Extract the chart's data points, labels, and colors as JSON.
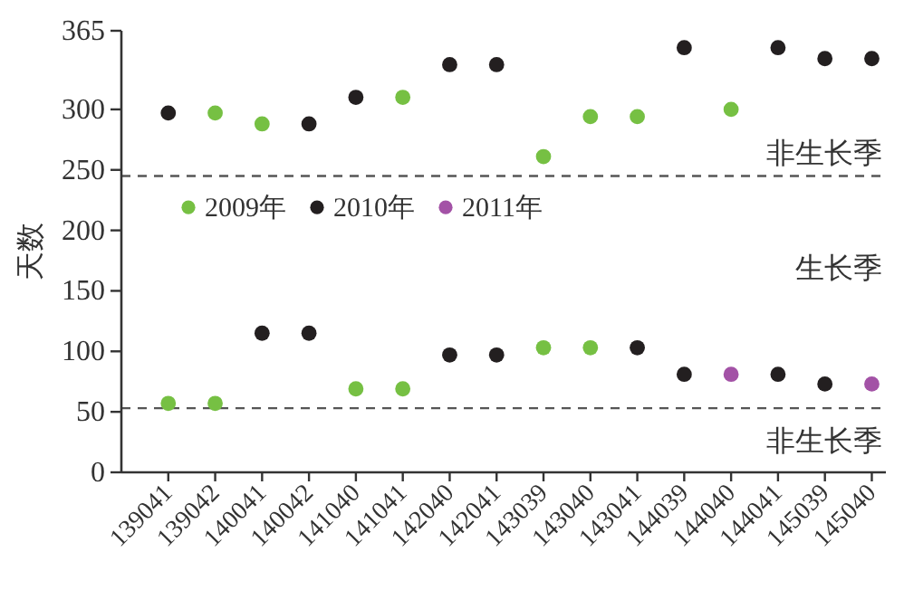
{
  "chart_data": {
    "type": "scatter",
    "ylabel": "天数",
    "categories": [
      "139041",
      "139042",
      "140041",
      "140042",
      "141040",
      "141041",
      "142040",
      "142041",
      "143039",
      "143040",
      "143041",
      "144039",
      "144040",
      "144041",
      "145039",
      "145040"
    ],
    "series": [
      {
        "name": "2009年",
        "color": "#76c043",
        "x": [
          "139042",
          "140041",
          "141041",
          "143039",
          "143040",
          "143041",
          "144040",
          "139041",
          "139042",
          "141040",
          "141041",
          "143039",
          "143040"
        ],
        "values": [
          297,
          288,
          310,
          261,
          294,
          294,
          300,
          57,
          57,
          69,
          69,
          103,
          103
        ]
      },
      {
        "name": "2010年",
        "color": "#231f20",
        "x": [
          "139041",
          "140042",
          "141040",
          "142040",
          "142041",
          "144039",
          "144041",
          "145039",
          "145040",
          "140041",
          "140042",
          "142040",
          "142041",
          "143041",
          "144039",
          "144041",
          "145039"
        ],
        "values": [
          297,
          288,
          310,
          337,
          337,
          351,
          351,
          342,
          342,
          115,
          115,
          97,
          97,
          103,
          81,
          81,
          73
        ]
      },
      {
        "name": "2011年",
        "color": "#a352a6",
        "x": [
          "144040",
          "145040"
        ],
        "values": [
          81,
          73
        ]
      }
    ],
    "ylim": [
      0,
      365
    ],
    "yticks": [
      0,
      50,
      100,
      150,
      200,
      250,
      300,
      365
    ],
    "ref_lines": [
      {
        "axis": "y",
        "value": 245,
        "line_style": "dashed",
        "color": "#555555"
      },
      {
        "axis": "y",
        "value": 53,
        "line_style": "dashed",
        "color": "#555555"
      }
    ],
    "annotations": [
      "非生长季",
      "生长季",
      "非生长季"
    ],
    "legend": "left",
    "marker": "circle",
    "grid": false
  }
}
